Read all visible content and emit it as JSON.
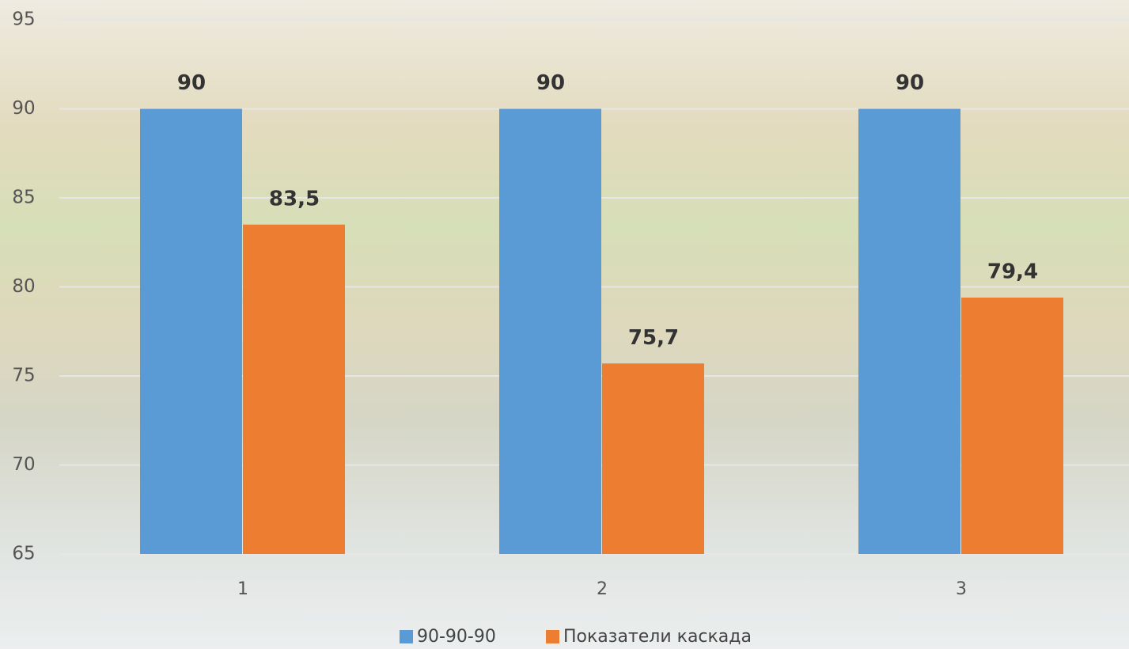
{
  "chart_data": {
    "type": "bar",
    "categories": [
      "1",
      "2",
      "3"
    ],
    "series": [
      {
        "name": "90-90-90",
        "color": "#5b9bd5",
        "values": [
          90,
          90,
          90
        ]
      },
      {
        "name": "Показатели каскада",
        "color": "#ed7d31",
        "values": [
          83.5,
          75.7,
          79.4
        ],
        "value_labels": [
          "83,5",
          "75,7",
          "79,4"
        ]
      }
    ],
    "ylim": [
      65,
      95
    ],
    "yticks": [
      65,
      70,
      75,
      80,
      85,
      90,
      95
    ],
    "grid": true,
    "legend": "bottom"
  }
}
